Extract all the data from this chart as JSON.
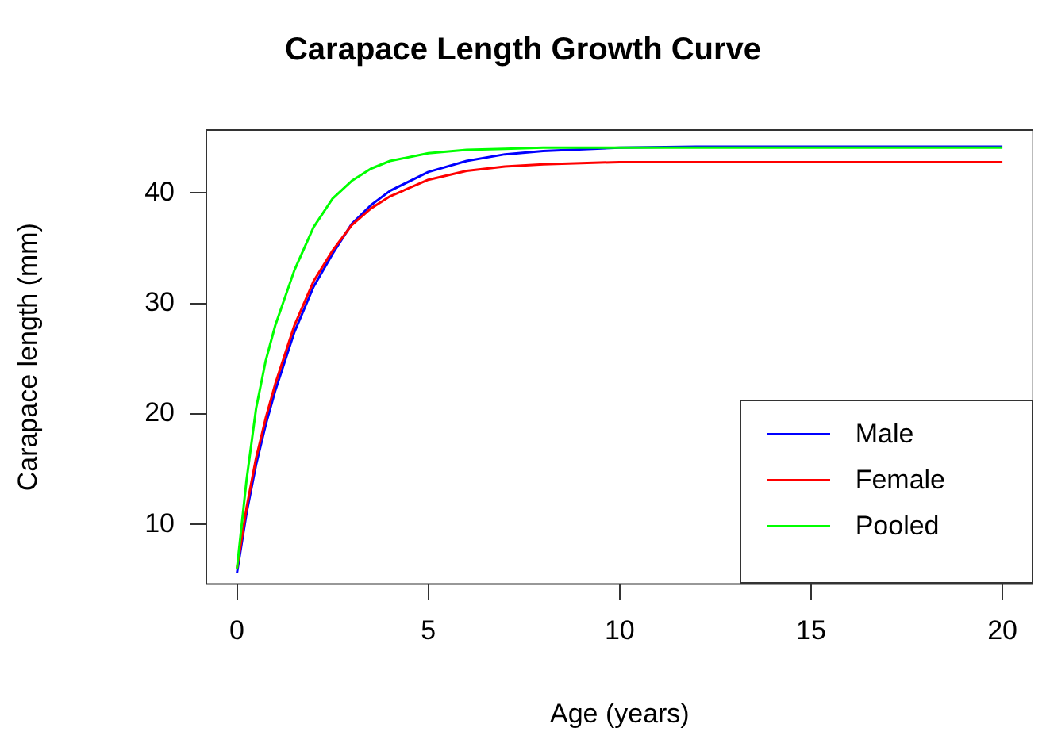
{
  "chart_data": {
    "type": "line",
    "title": "Carapace Length Growth Curve",
    "xlabel": "Age (years)",
    "ylabel": "Carapace length (mm)",
    "x": [
      0,
      0.25,
      0.5,
      0.75,
      1,
      1.5,
      2,
      2.5,
      3,
      3.5,
      4,
      5,
      6,
      7,
      8,
      10,
      12,
      15,
      20
    ],
    "series": [
      {
        "name": "Male",
        "color": "#0000ff",
        "values": [
          5.6,
          11,
          15.4,
          19,
          22.1,
          27.4,
          31.5,
          34.5,
          37.2,
          38.9,
          40.2,
          41.9,
          42.9,
          43.5,
          43.8,
          44.1,
          44.2,
          44.2,
          44.2
        ]
      },
      {
        "name": "Female",
        "color": "#ff0000",
        "values": [
          6,
          11.5,
          16,
          19.6,
          22.7,
          28,
          32,
          34.8,
          37.1,
          38.6,
          39.7,
          41.2,
          42,
          42.4,
          42.6,
          42.8,
          42.8,
          42.8,
          42.8
        ]
      },
      {
        "name": "Pooled",
        "color": "#00ff00",
        "values": [
          6,
          14,
          20.5,
          24.8,
          28,
          33,
          36.9,
          39.5,
          41.1,
          42.2,
          42.9,
          43.6,
          43.9,
          44,
          44.1,
          44.1,
          44.1,
          44.1,
          44.1
        ]
      }
    ],
    "xlim": [
      -0.8,
      20.8
    ],
    "ylim": [
      4.6,
      45.7
    ],
    "xticks": [
      0,
      5,
      10,
      15,
      20
    ],
    "yticks": [
      10,
      20,
      30,
      40
    ],
    "grid": false,
    "legend": "bottom right",
    "marker": "none",
    "line_style": "solid"
  }
}
